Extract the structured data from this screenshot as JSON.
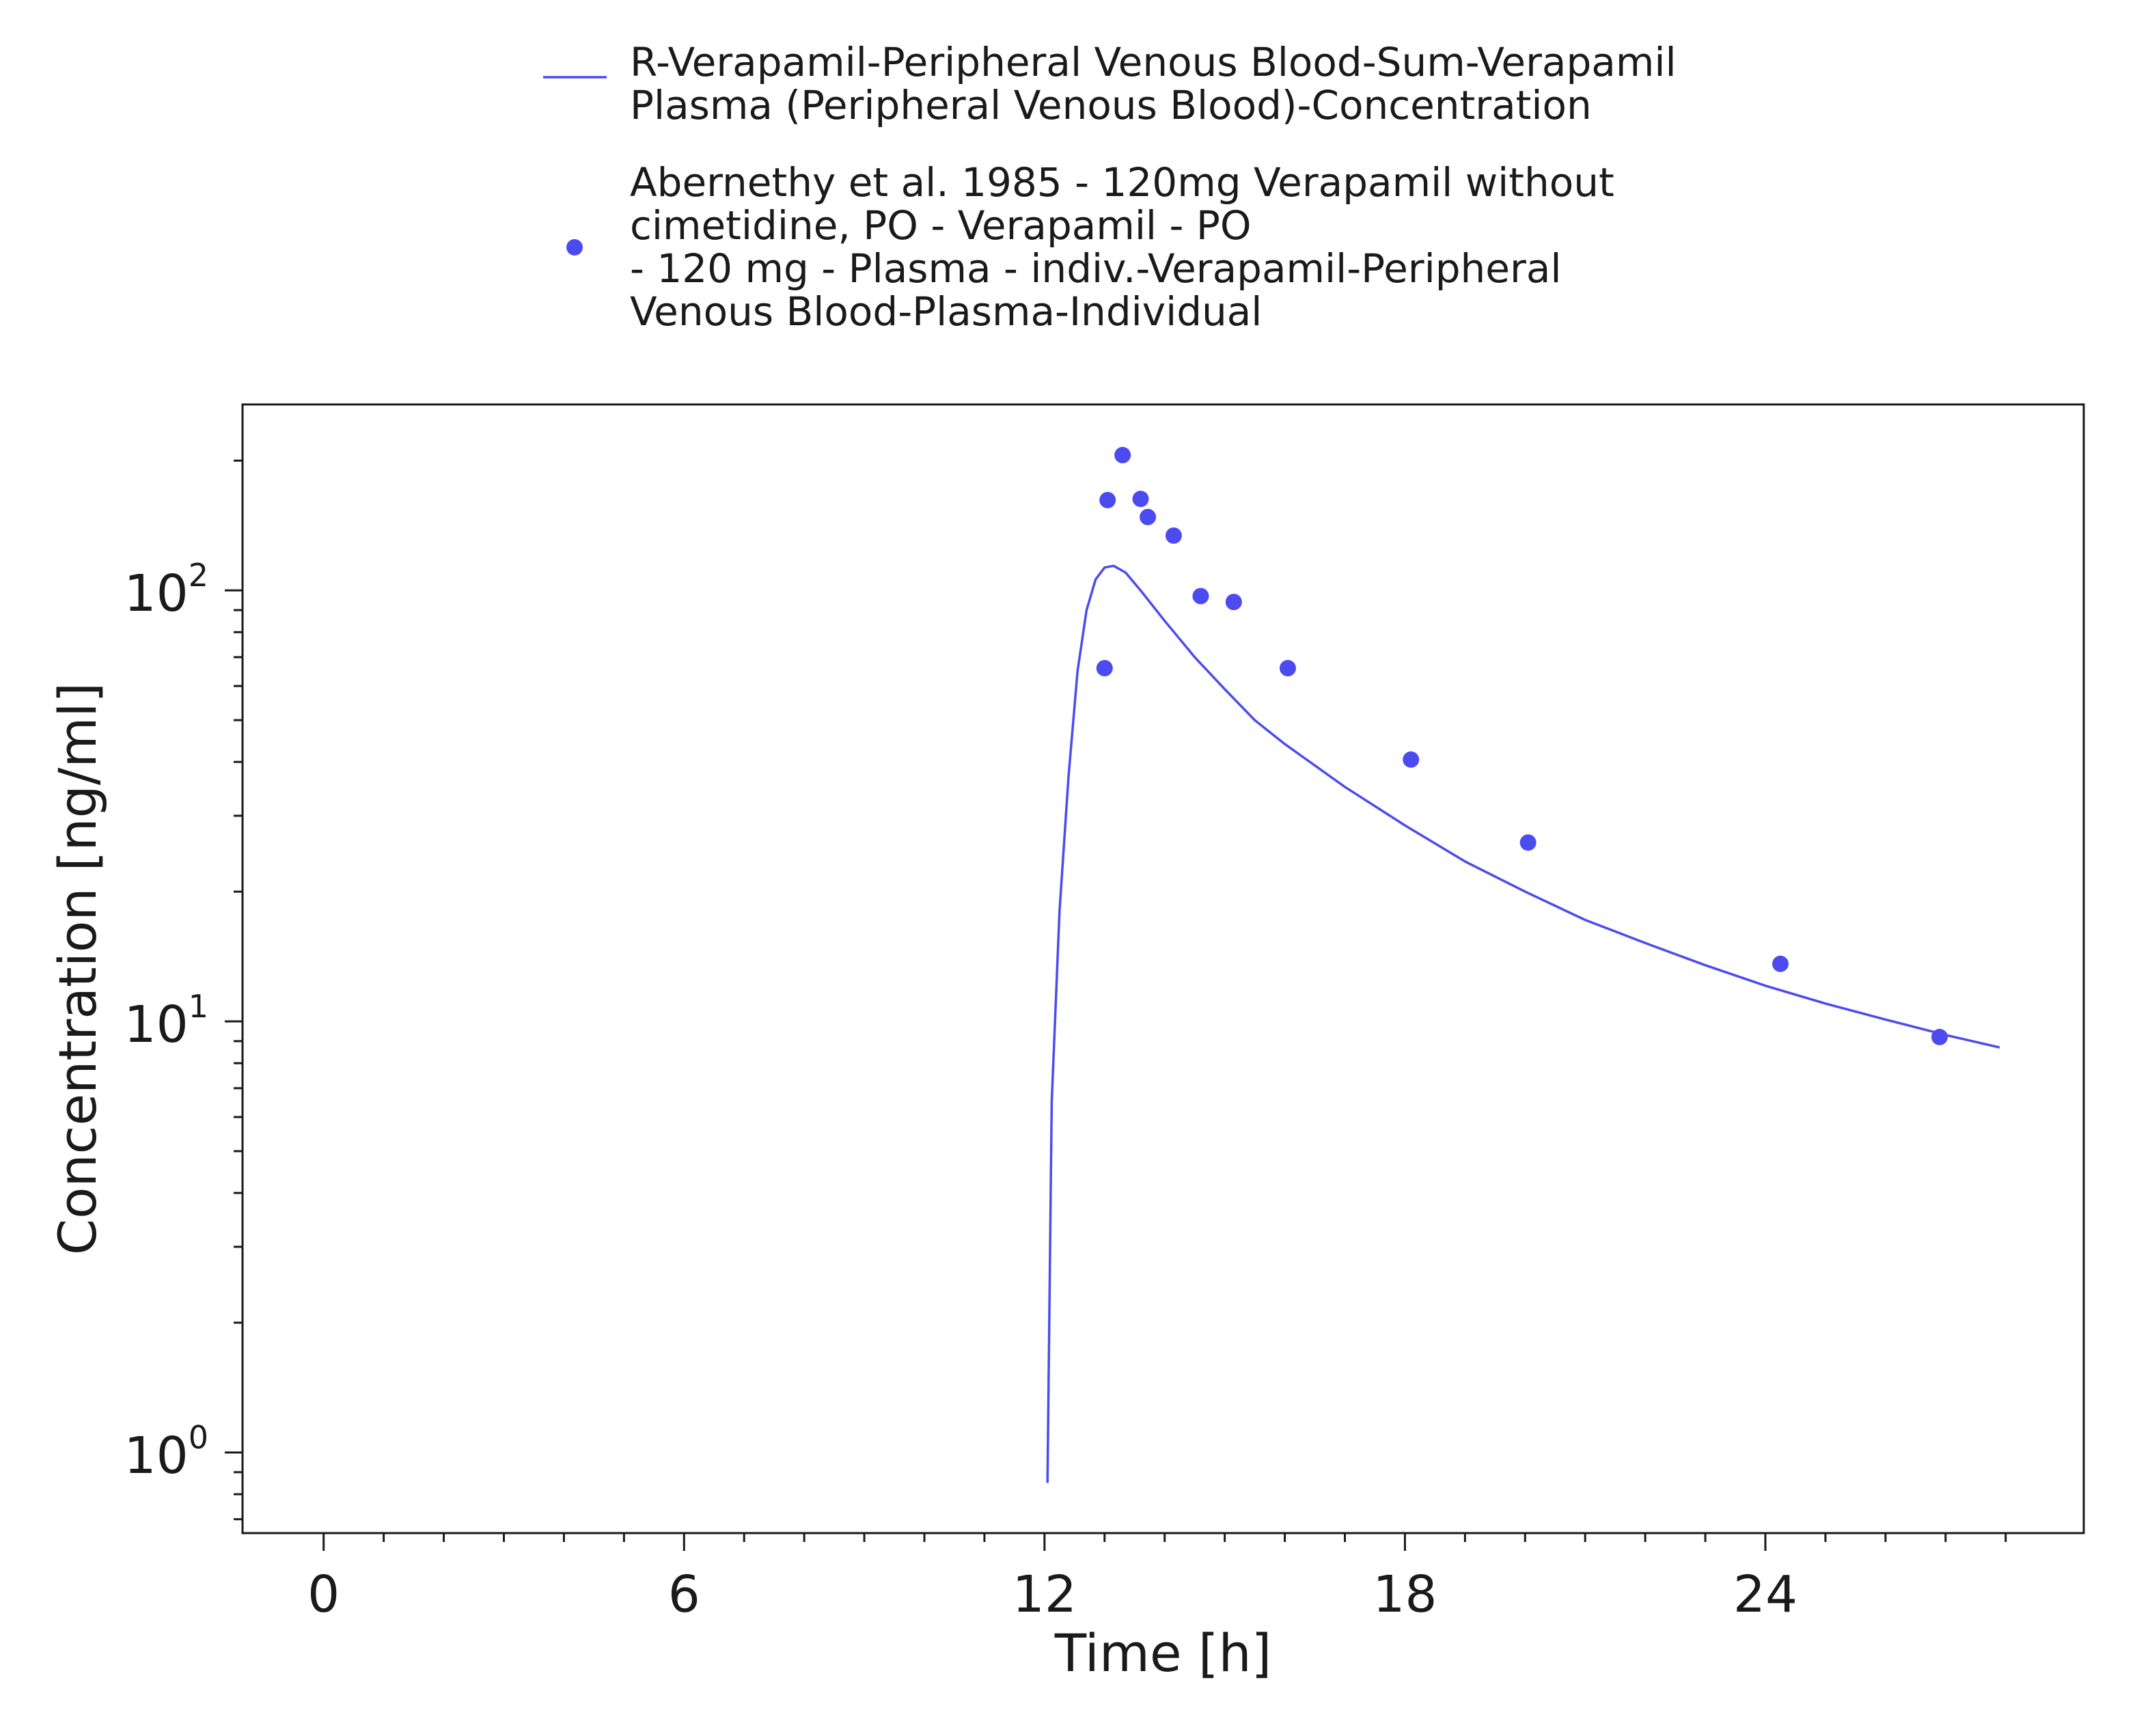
{
  "chart_data": {
    "type": "line",
    "title": "",
    "xlabel": "Time [h]",
    "ylabel": "Concentration [ng/ml]",
    "x_ticks": [
      "0",
      "6",
      "12",
      "18",
      "24"
    ],
    "y_ticks": [
      {
        "base": "10",
        "exp": "0"
      },
      {
        "base": "10",
        "exp": "1"
      },
      {
        "base": "10",
        "exp": "2"
      }
    ],
    "xlim": [
      -1.35,
      29.3
    ],
    "ylim": [
      0.65,
      270
    ],
    "y_scale": "log",
    "legend_position": "top",
    "series": [
      {
        "name_lines": [
          "R-Verapamil-Peripheral Venous Blood-Sum-Verapamil",
          "Plasma (Peripheral Venous Blood)-Concentration"
        ],
        "kind": "line",
        "color": "#4b4bf0",
        "points": [
          [
            12.05,
            0.85
          ],
          [
            12.12,
            6.5
          ],
          [
            12.25,
            18
          ],
          [
            12.4,
            37
          ],
          [
            12.55,
            65
          ],
          [
            12.7,
            90
          ],
          [
            12.85,
            106
          ],
          [
            13.0,
            113
          ],
          [
            13.15,
            114
          ],
          [
            13.35,
            110
          ],
          [
            13.6,
            100
          ],
          [
            14.0,
            85
          ],
          [
            14.5,
            70
          ],
          [
            15.0,
            59
          ],
          [
            15.5,
            50
          ],
          [
            16.0,
            44
          ],
          [
            17.0,
            35
          ],
          [
            18.0,
            28.5
          ],
          [
            19.0,
            23.5
          ],
          [
            20.0,
            20
          ],
          [
            21.0,
            17.2
          ],
          [
            22.0,
            15.2
          ],
          [
            23.0,
            13.5
          ],
          [
            24.0,
            12.1
          ],
          [
            25.0,
            11
          ],
          [
            26.0,
            10.1
          ],
          [
            27.0,
            9.3
          ],
          [
            27.9,
            8.7
          ]
        ]
      },
      {
        "name_lines": [
          "Abernethy et al. 1985 - 120mg Verapamil without",
          "cimetidine, PO - Verapamil - PO",
          "- 120 mg - Plasma - indiv.-Verapamil-Peripheral",
          "Venous Blood-Plasma-Individual"
        ],
        "kind": "scatter",
        "color": "#4b4bf0",
        "points": [
          [
            13.0,
            66
          ],
          [
            13.05,
            162
          ],
          [
            13.3,
            206
          ],
          [
            13.6,
            163
          ],
          [
            13.72,
            148
          ],
          [
            14.15,
            134
          ],
          [
            14.6,
            97
          ],
          [
            15.15,
            94
          ],
          [
            16.05,
            66
          ],
          [
            18.1,
            40.5
          ],
          [
            20.05,
            26
          ],
          [
            24.25,
            13.6
          ],
          [
            26.9,
            9.2
          ]
        ]
      }
    ]
  }
}
